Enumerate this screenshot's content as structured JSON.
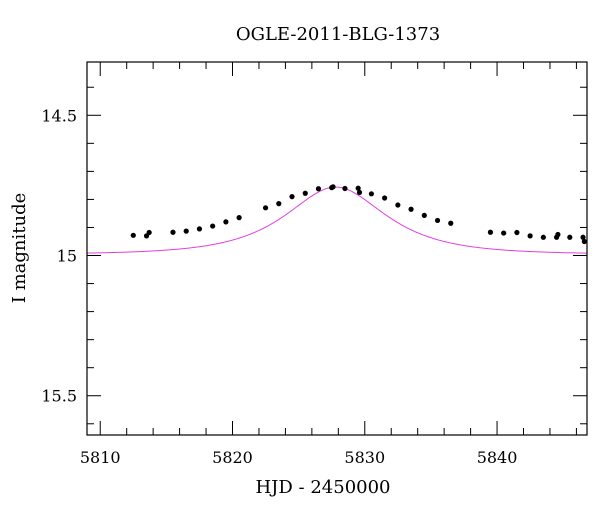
{
  "chart_data": {
    "type": "scatter",
    "title": "OGLE-2011-BLG-1373",
    "xlabel": "HJD - 2450000",
    "ylabel": "I magnitude",
    "xlim": [
      5809,
      5846.8
    ],
    "ylim": [
      15.64,
      14.31
    ],
    "y_inverted": true,
    "x_major_ticks": [
      5810,
      5820,
      5830,
      5840
    ],
    "x_tick_labels": [
      "5810",
      "5820",
      "5830",
      "5840"
    ],
    "y_major_ticks": [
      14.5,
      15,
      15.5
    ],
    "y_tick_labels": [
      "14.5",
      "15",
      "15.5"
    ],
    "grid": false,
    "colors": {
      "data": "#000000",
      "model": "#e040e0",
      "frame": "#000000"
    },
    "series": [
      {
        "kind": "points",
        "x": [
          5812.5,
          5813.5,
          5813.7,
          5815.5,
          5816.5,
          5817.5,
          5818.5,
          5819.5,
          5820.5,
          5822.5,
          5823.5,
          5824.5,
          5825.5,
          5826.5,
          5827.5,
          5827.6,
          5828.5,
          5829.5,
          5829.6,
          5830.5,
          5831.5,
          5832.5,
          5833.5,
          5834.5,
          5835.5,
          5836.5,
          5839.5,
          5840.5,
          5841.5,
          5842.5,
          5843.5,
          5844.5,
          5844.6,
          5845.5,
          5846.5,
          5846.6
        ],
        "y": [
          14.928,
          14.93,
          14.918,
          14.917,
          14.913,
          14.905,
          14.895,
          14.88,
          14.865,
          14.83,
          14.815,
          14.79,
          14.778,
          14.762,
          14.758,
          14.755,
          14.761,
          14.76,
          14.775,
          14.78,
          14.795,
          14.82,
          14.835,
          14.857,
          14.875,
          14.885,
          14.917,
          14.92,
          14.918,
          14.93,
          14.935,
          14.935,
          14.925,
          14.935,
          14.935,
          14.95
        ]
      },
      {
        "kind": "model",
        "t0": 5827.8,
        "tE": 5.5,
        "peak_mag": 14.756,
        "base_mag": 14.996,
        "x_range": [
          5809,
          5846.8
        ]
      }
    ]
  }
}
